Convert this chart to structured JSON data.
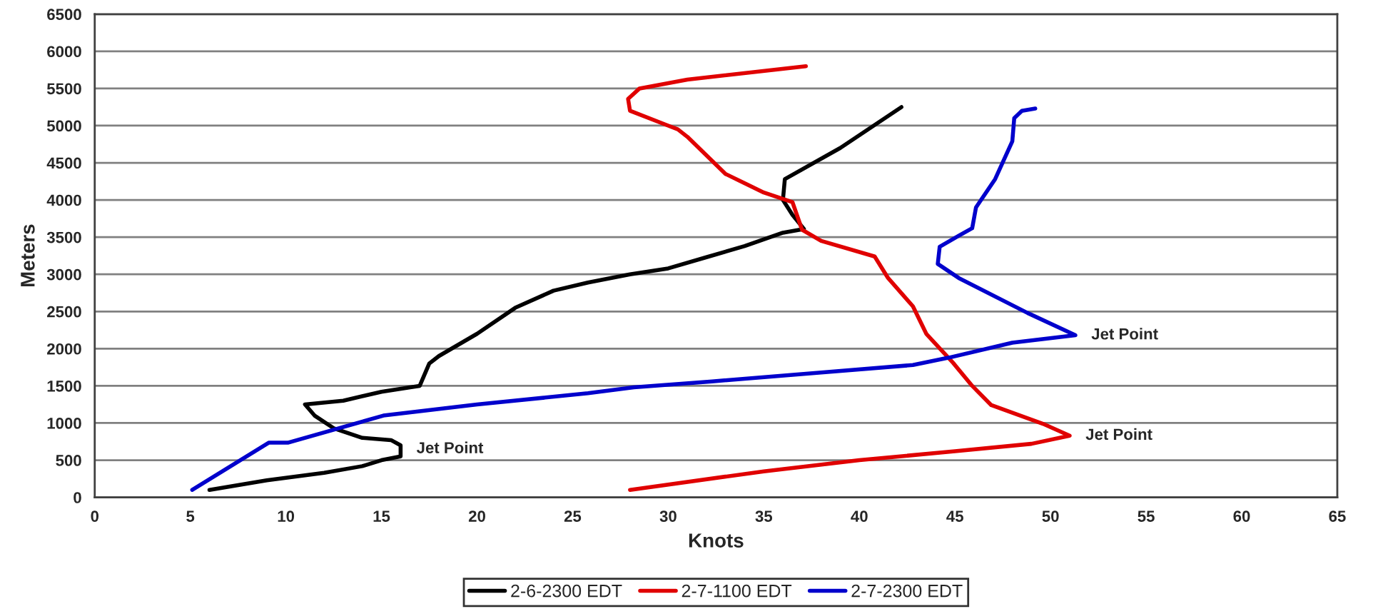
{
  "chart_data": {
    "type": "line",
    "xlabel": "Knots",
    "ylabel": "Meters",
    "xlim": [
      0,
      65
    ],
    "xticks": [
      0,
      5,
      10,
      15,
      20,
      25,
      30,
      35,
      40,
      45,
      50,
      55,
      60,
      65
    ],
    "ylim": [
      0,
      6500
    ],
    "yticks": [
      0,
      500,
      1000,
      1500,
      2000,
      2500,
      3000,
      3500,
      4000,
      4500,
      5000,
      5500,
      6000,
      6500
    ],
    "grid": "y",
    "legend": "bottom",
    "marker": "none",
    "line_style": "solid",
    "series": [
      {
        "name": "2-6-2300 EDT",
        "color": "#000000",
        "x": [
          6,
          9,
          12,
          14,
          15,
          16,
          16,
          15.5,
          14,
          12.5,
          11.5,
          11,
          13,
          15,
          16.5,
          17,
          17.5,
          18,
          20,
          22,
          24,
          25.8,
          28,
          30,
          32,
          34,
          36,
          37.1,
          36.5,
          36,
          36.1,
          39,
          42.2
        ],
        "values": [
          100,
          230,
          330,
          420,
          500,
          550,
          700,
          770,
          800,
          930,
          1100,
          1250,
          1300,
          1420,
          1480,
          1500,
          1800,
          1900,
          2200,
          2550,
          2780,
          2890,
          3000,
          3080,
          3230,
          3380,
          3560,
          3610,
          3800,
          4000,
          4280,
          4700,
          5250
        ]
      },
      {
        "name": "2-7-1100 EDT",
        "color": "#e00000",
        "x": [
          28,
          35,
          40,
          45,
          49,
          51,
          49.6,
          46.9,
          45.9,
          44.9,
          43.5,
          42.8,
          41.5,
          40.8,
          38,
          37,
          36.5,
          35,
          33,
          31,
          30.5,
          30,
          28,
          27.9,
          28.5,
          31,
          37.2
        ],
        "values": [
          100,
          350,
          500,
          620,
          720,
          830,
          990,
          1240,
          1500,
          1810,
          2200,
          2570,
          2950,
          3240,
          3450,
          3600,
          3970,
          4100,
          4350,
          4850,
          4950,
          5000,
          5200,
          5360,
          5500,
          5620,
          5800
        ]
      },
      {
        "name": "2-7-2300 EDT",
        "color": "#0000cc",
        "x": [
          5.1,
          9.1,
          10.1,
          15.1,
          20,
          25.8,
          28.2,
          32.3,
          38,
          42.8,
          44.7,
          48,
          51.3,
          48.8,
          45.2,
          44.1,
          44.2,
          45.2,
          45.9,
          46.1,
          47.1,
          48.0,
          48.1,
          48.5,
          49.2
        ],
        "values": [
          100,
          735,
          735,
          1100,
          1250,
          1400,
          1480,
          1560,
          1680,
          1780,
          1880,
          2080,
          2180,
          2480,
          2950,
          3140,
          3370,
          3520,
          3620,
          3900,
          4280,
          4790,
          5100,
          5200,
          5230
        ]
      }
    ],
    "annotations": [
      {
        "text": "Jet Point",
        "x": 16,
        "y": 650
      },
      {
        "text": "Jet Point",
        "x": 51,
        "y": 830
      },
      {
        "text": "Jet Point",
        "x": 51.3,
        "y": 2180
      }
    ]
  }
}
